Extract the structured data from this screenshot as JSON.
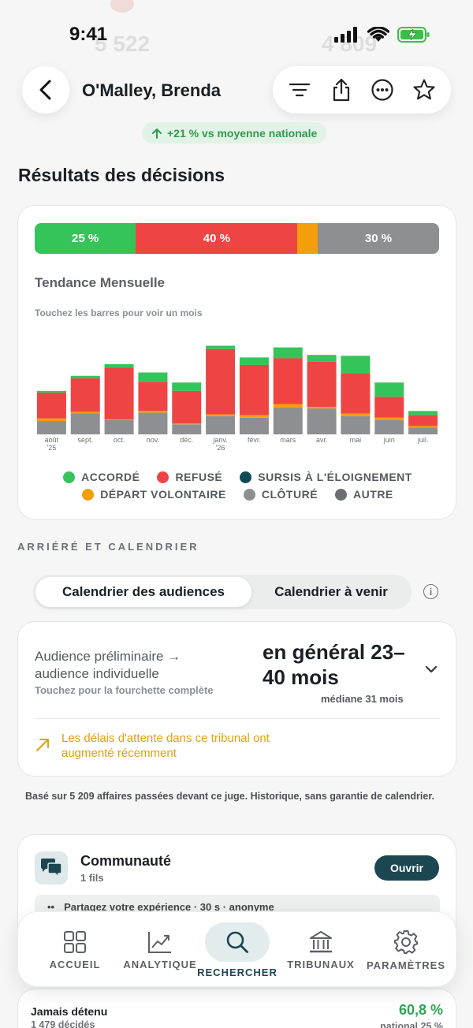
{
  "status": {
    "time": "9:41"
  },
  "background_faded": {
    "left_value": "5 522",
    "right_value": "4 809"
  },
  "header": {
    "title": "O'Malley, Brenda"
  },
  "trend_chip": {
    "text": "+21 % vs moyenne nationale"
  },
  "decisions": {
    "title": "Résultats des décisions",
    "overall_bar": [
      {
        "label": "25 %",
        "value": 25,
        "color": "#35c45a"
      },
      {
        "label": "40 %",
        "value": 40,
        "color": "#ef4444"
      },
      {
        "label": "",
        "value": 5,
        "color": "#f59e0b"
      },
      {
        "label": "30 %",
        "value": 30,
        "color": "#8e8f93"
      }
    ],
    "monthly_title": "Tendance Mensuelle",
    "monthly_hint": "Touchez les barres pour voir un mois",
    "legend": [
      [
        {
          "label": "ACCORDÉ",
          "color": "#35c45a"
        },
        {
          "label": "REFUSÉ",
          "color": "#ef4444"
        },
        {
          "label": "SURSIS À L'ÉLOIGNEMENT",
          "color": "#0f4a55"
        }
      ],
      [
        {
          "label": "DÉPART VOLONTAIRE",
          "color": "#f59e0b"
        },
        {
          "label": "CLÔTURÉ",
          "color": "#8e8f93"
        },
        {
          "label": "AUTRE",
          "color": "#6b6e74"
        }
      ]
    ]
  },
  "chart_data": {
    "type": "bar",
    "stacked": true,
    "categories": [
      "août '25",
      "sept.",
      "oct.",
      "nov.",
      "déc.",
      "janv. '26",
      "févr.",
      "mars",
      "avr.",
      "mai",
      "juin",
      "juil."
    ],
    "series": [
      {
        "name": "CLÔTURÉ",
        "color": "#8e8f93",
        "values": [
          16,
          25,
          17,
          26,
          12,
          22,
          20,
          32,
          31,
          22,
          17,
          8
        ]
      },
      {
        "name": "DÉPART VOLONTAIRE",
        "color": "#f59e0b",
        "values": [
          3,
          2,
          1,
          2,
          1,
          2,
          3,
          4,
          2,
          3,
          3,
          2
        ]
      },
      {
        "name": "REFUSÉ",
        "color": "#ef4444",
        "values": [
          31,
          40,
          62,
          35,
          39,
          78,
          60,
          55,
          54,
          48,
          25,
          13
        ]
      },
      {
        "name": "ACCORDÉ",
        "color": "#35c45a",
        "values": [
          2,
          3,
          4,
          11,
          10,
          4,
          9,
          13,
          8,
          21,
          17,
          5
        ]
      }
    ],
    "ylim": [
      0,
      115
    ]
  },
  "arriere": {
    "title": "ARRIÉRÉ ET CALENDRIER",
    "tab_active": "Calendrier des audiences",
    "tab_inactive": "Calendrier à venir",
    "info_icon": "i"
  },
  "timeline": {
    "label": "Audience préliminaire → audience individuelle",
    "sub": "Touchez pour la fourchette complète",
    "range": "en général 23–40 mois",
    "median": "médiane 31 mois",
    "warning": "Les délais d'attente dans ce tribunal ont augmenté récemment"
  },
  "footnote": "Basé sur 5 209 affaires passées devant ce juge. Historique, sans garantie de calendrier.",
  "community": {
    "title": "Communauté",
    "sub": "1 fils",
    "open_label": "Ouvrir",
    "share_text": "Partagez votre expérience · 30 s · anonyme"
  },
  "tabbar": {
    "items": [
      {
        "label": "ACCUEIL",
        "icon": "grid-icon"
      },
      {
        "label": "ANALYTIQUE",
        "icon": "chart-icon"
      },
      {
        "label": "RECHERCHER",
        "icon": "search-icon"
      },
      {
        "label": "TRIBUNAUX",
        "icon": "courthouse-icon"
      },
      {
        "label": "PARAMÈTRES",
        "icon": "gear-icon"
      }
    ],
    "active_index": 2
  },
  "stat": {
    "label": "Jamais détenu",
    "sub": "1 479 décidés",
    "value": "60,8 %",
    "national": "national 25 %"
  }
}
